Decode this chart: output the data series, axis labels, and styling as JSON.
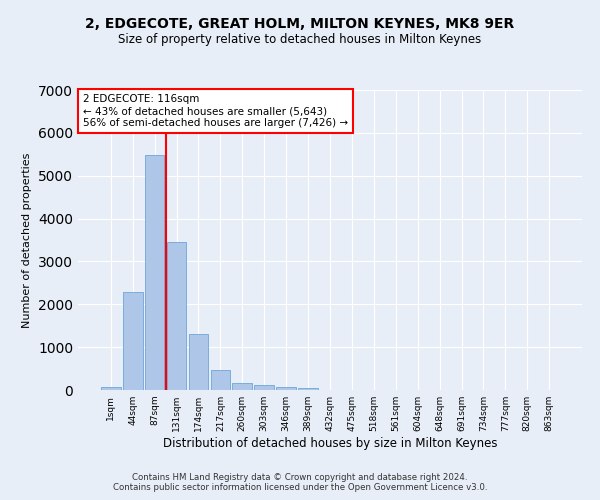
{
  "title": "2, EDGECOTE, GREAT HOLM, MILTON KEYNES, MK8 9ER",
  "subtitle": "Size of property relative to detached houses in Milton Keynes",
  "xlabel": "Distribution of detached houses by size in Milton Keynes",
  "ylabel": "Number of detached properties",
  "footer_line1": "Contains HM Land Registry data © Crown copyright and database right 2024.",
  "footer_line2": "Contains public sector information licensed under the Open Government Licence v3.0.",
  "bar_labels": [
    "1sqm",
    "44sqm",
    "87sqm",
    "131sqm",
    "174sqm",
    "217sqm",
    "260sqm",
    "303sqm",
    "346sqm",
    "389sqm",
    "432sqm",
    "475sqm",
    "518sqm",
    "561sqm",
    "604sqm",
    "648sqm",
    "691sqm",
    "734sqm",
    "777sqm",
    "820sqm",
    "863sqm"
  ],
  "bar_values": [
    80,
    2280,
    5480,
    3450,
    1310,
    470,
    160,
    110,
    80,
    55,
    0,
    0,
    0,
    0,
    0,
    0,
    0,
    0,
    0,
    0,
    0
  ],
  "bar_color": "#aec6e8",
  "bar_edge_color": "#5a9bd4",
  "background_color": "#e8eef7",
  "grid_color": "#ffffff",
  "vline_x_index": 2.5,
  "vline_color": "red",
  "annotation_text": "2 EDGECOTE: 116sqm\n← 43% of detached houses are smaller (5,643)\n56% of semi-detached houses are larger (7,426) →",
  "annotation_box_color": "white",
  "annotation_box_edge": "red",
  "ylim": [
    0,
    7000
  ],
  "yticks": [
    0,
    1000,
    2000,
    3000,
    4000,
    5000,
    6000,
    7000
  ]
}
